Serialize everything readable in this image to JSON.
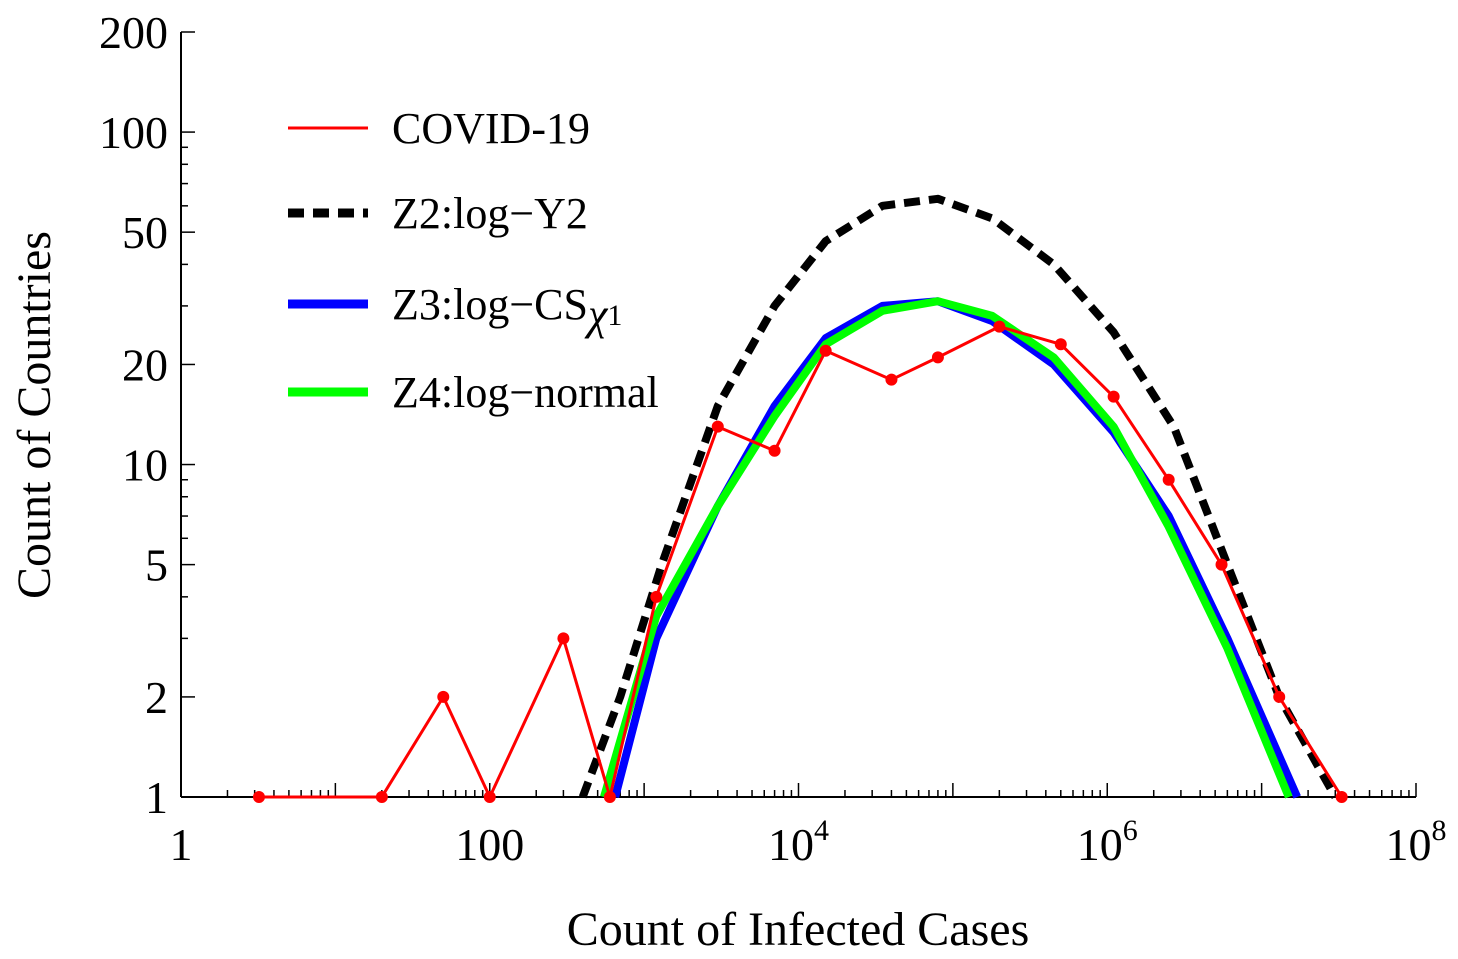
{
  "chart_data": {
    "type": "line",
    "xscale": "log",
    "yscale": "log",
    "xlabel": "Count of Infected Cases",
    "ylabel": "Count of Countries",
    "xlim": [
      1,
      100000000
    ],
    "ylim": [
      1,
      200
    ],
    "x_ticks": [
      {
        "value": 1,
        "label": "1",
        "sup": ""
      },
      {
        "value": 100,
        "label": "100",
        "sup": ""
      },
      {
        "value": 10000,
        "label": "10",
        "sup": "4"
      },
      {
        "value": 1000000,
        "label": "10",
        "sup": "6"
      },
      {
        "value": 100000000,
        "label": "10",
        "sup": "8"
      }
    ],
    "y_ticks": [
      {
        "value": 1,
        "label": "1"
      },
      {
        "value": 2,
        "label": "2"
      },
      {
        "value": 5,
        "label": "5"
      },
      {
        "value": 10,
        "label": "10"
      },
      {
        "value": 20,
        "label": "20"
      },
      {
        "value": 50,
        "label": "50"
      },
      {
        "value": 100,
        "label": "100"
      },
      {
        "value": 200,
        "label": "200"
      }
    ],
    "series": [
      {
        "name": "COVID-19",
        "color": "#ff0000",
        "style": "solid",
        "markers": true,
        "points": [
          [
            3.2,
            1
          ],
          [
            20,
            1
          ],
          [
            50,
            2
          ],
          [
            100,
            1
          ],
          [
            300,
            3
          ],
          [
            600,
            1
          ],
          [
            1200,
            4
          ],
          [
            3000,
            13
          ],
          [
            7000,
            11
          ],
          [
            15000,
            22
          ],
          [
            40000,
            18
          ],
          [
            80000,
            21
          ],
          [
            200000,
            26
          ],
          [
            500000,
            23
          ],
          [
            1100000,
            16
          ],
          [
            2500000,
            9
          ],
          [
            5500000,
            5
          ],
          [
            13000000,
            2
          ],
          [
            33000000,
            1
          ]
        ]
      },
      {
        "name": "Z2:log−Y2",
        "color": "#000000",
        "style": "dashed",
        "markers": false,
        "points": [
          [
            400,
            1
          ],
          [
            700,
            2
          ],
          [
            1300,
            5
          ],
          [
            3000,
            15
          ],
          [
            7000,
            30
          ],
          [
            15000,
            47
          ],
          [
            35000,
            60
          ],
          [
            80000,
            63
          ],
          [
            180000,
            55
          ],
          [
            450000,
            40
          ],
          [
            1100000,
            25
          ],
          [
            2700000,
            13
          ],
          [
            6000000,
            5
          ],
          [
            13000000,
            2
          ],
          [
            30000000,
            1
          ]
        ]
      },
      {
        "name": "Z3:log−CSχ1",
        "label_main": "Z3:log−CS",
        "label_sub": "χ",
        "label_subscript": "1",
        "color": "#0000ff",
        "style": "solid",
        "markers": false,
        "points": [
          [
            650,
            1
          ],
          [
            1200,
            3
          ],
          [
            3000,
            7.5
          ],
          [
            7000,
            15
          ],
          [
            15000,
            24
          ],
          [
            35000,
            30
          ],
          [
            80000,
            31
          ],
          [
            180000,
            27
          ],
          [
            450000,
            20
          ],
          [
            1100000,
            12.5
          ],
          [
            2500000,
            7
          ],
          [
            6000000,
            3
          ],
          [
            17000000,
            1
          ]
        ]
      },
      {
        "name": "Z4:log−normal",
        "color": "#00ff00",
        "style": "solid",
        "markers": false,
        "points": [
          [
            550,
            1
          ],
          [
            1200,
            3.5
          ],
          [
            3000,
            7.5
          ],
          [
            7000,
            14
          ],
          [
            15000,
            23
          ],
          [
            35000,
            29
          ],
          [
            80000,
            31
          ],
          [
            180000,
            28
          ],
          [
            450000,
            21
          ],
          [
            1100000,
            13
          ],
          [
            2500000,
            6.5
          ],
          [
            6000000,
            2.8
          ],
          [
            15000000,
            1
          ]
        ]
      }
    ]
  }
}
